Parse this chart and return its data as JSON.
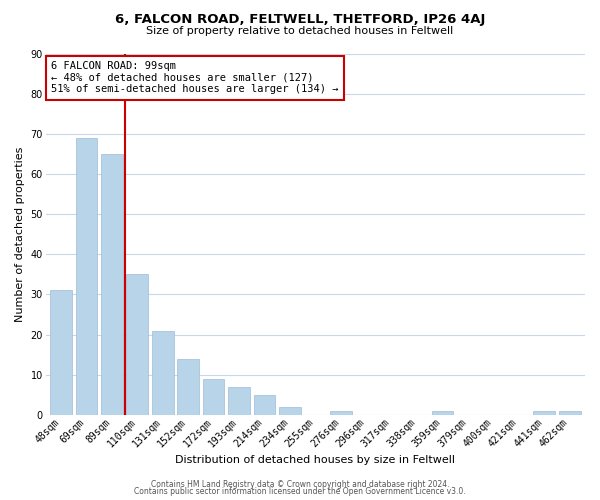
{
  "title": "6, FALCON ROAD, FELTWELL, THETFORD, IP26 4AJ",
  "subtitle": "Size of property relative to detached houses in Feltwell",
  "xlabel": "Distribution of detached houses by size in Feltwell",
  "ylabel": "Number of detached properties",
  "bar_labels": [
    "48sqm",
    "69sqm",
    "89sqm",
    "110sqm",
    "131sqm",
    "152sqm",
    "172sqm",
    "193sqm",
    "214sqm",
    "234sqm",
    "255sqm",
    "276sqm",
    "296sqm",
    "317sqm",
    "338sqm",
    "359sqm",
    "379sqm",
    "400sqm",
    "421sqm",
    "441sqm",
    "462sqm"
  ],
  "bar_values": [
    31,
    69,
    65,
    35,
    21,
    14,
    9,
    7,
    5,
    2,
    0,
    1,
    0,
    0,
    0,
    1,
    0,
    0,
    0,
    1,
    1
  ],
  "bar_color": "#b8d4e8",
  "bar_edge_color": "#a0bcd8",
  "vline_color": "#cc0000",
  "annotation_line1": "6 FALCON ROAD: 99sqm",
  "annotation_line2": "← 48% of detached houses are smaller (127)",
  "annotation_line3": "51% of semi-detached houses are larger (134) →",
  "annotation_box_color": "#ffffff",
  "annotation_box_edgecolor": "#cc0000",
  "ylim": [
    0,
    90
  ],
  "yticks": [
    0,
    10,
    20,
    30,
    40,
    50,
    60,
    70,
    80,
    90
  ],
  "footer_line1": "Contains HM Land Registry data © Crown copyright and database right 2024.",
  "footer_line2": "Contains public sector information licensed under the Open Government Licence v3.0.",
  "bg_color": "#ffffff",
  "grid_color": "#c8d8e8",
  "title_fontsize": 9.5,
  "subtitle_fontsize": 8,
  "axis_label_fontsize": 8,
  "tick_fontsize": 7,
  "annotation_fontsize": 7.5,
  "footer_fontsize": 5.5
}
